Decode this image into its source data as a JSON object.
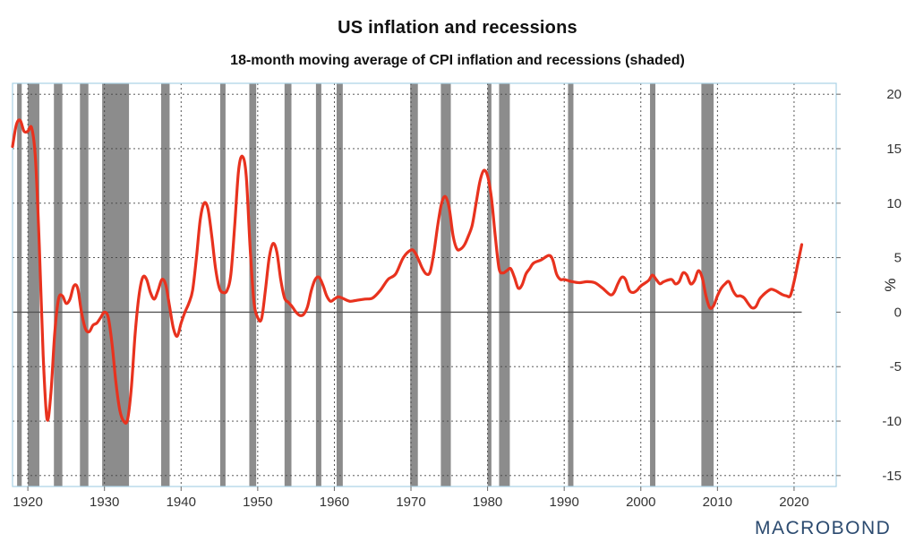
{
  "header": {
    "title": "US inflation and recessions",
    "subtitle": "18-month moving average of CPI inflation and recessions (shaded)"
  },
  "brand": {
    "logo_text": "MACROBOND"
  },
  "colors": {
    "line": "#e8321e",
    "recession": "#8c8c8c",
    "frame": "#a9d3e6",
    "grid": "#444444",
    "logo": "#2b4a6f"
  },
  "chart_data": {
    "type": "line",
    "title": "US inflation and recessions",
    "subtitle": "18-month moving average of CPI inflation and recessions (shaded)",
    "xlabel": "",
    "ylabel": "%",
    "xlim": [
      1918,
      2025.5
    ],
    "ylim": [
      -16,
      21
    ],
    "y_axis_side": "right",
    "grid": true,
    "x_ticks": [
      "1920",
      "1930",
      "1940",
      "1950",
      "1960",
      "1970",
      "1980",
      "1990",
      "2000",
      "2010",
      "2020"
    ],
    "y_ticks": [
      "20",
      "15",
      "10",
      "5",
      "0",
      "-5",
      "-10",
      "-15"
    ],
    "recessions": [
      [
        1918.6,
        1919.2
      ],
      [
        1920.0,
        1921.5
      ],
      [
        1923.4,
        1924.5
      ],
      [
        1926.8,
        1927.9
      ],
      [
        1929.7,
        1933.2
      ],
      [
        1937.4,
        1938.5
      ],
      [
        1945.1,
        1945.8
      ],
      [
        1948.9,
        1949.8
      ],
      [
        1953.5,
        1954.4
      ],
      [
        1957.6,
        1958.3
      ],
      [
        1960.3,
        1961.1
      ],
      [
        1969.9,
        1970.9
      ],
      [
        1973.9,
        1975.2
      ],
      [
        1980.0,
        1980.5
      ],
      [
        1981.5,
        1982.9
      ],
      [
        1990.5,
        1991.2
      ],
      [
        2001.2,
        2001.9
      ],
      [
        2007.9,
        2009.5
      ]
    ],
    "series": [
      {
        "values": [
          [
            1918.0,
            15.2
          ],
          [
            1918.5,
            17.2
          ],
          [
            1919.0,
            17.6
          ],
          [
            1919.5,
            16.6
          ],
          [
            1920.0,
            16.6
          ],
          [
            1920.5,
            16.9
          ],
          [
            1921.0,
            14.0
          ],
          [
            1921.5,
            6.0
          ],
          [
            1922.0,
            -4.0
          ],
          [
            1922.5,
            -9.8
          ],
          [
            1923.0,
            -7.5
          ],
          [
            1923.5,
            -2.0
          ],
          [
            1924.0,
            1.2
          ],
          [
            1924.5,
            1.5
          ],
          [
            1925.0,
            0.8
          ],
          [
            1925.5,
            1.2
          ],
          [
            1926.0,
            2.4
          ],
          [
            1926.5,
            2.2
          ],
          [
            1927.0,
            0.0
          ],
          [
            1927.5,
            -1.5
          ],
          [
            1928.0,
            -1.8
          ],
          [
            1928.5,
            -1.2
          ],
          [
            1929.0,
            -1.0
          ],
          [
            1929.5,
            -0.5
          ],
          [
            1930.0,
            0.0
          ],
          [
            1930.5,
            -0.5
          ],
          [
            1931.0,
            -3.0
          ],
          [
            1931.5,
            -6.5
          ],
          [
            1932.0,
            -9.0
          ],
          [
            1932.5,
            -10.0
          ],
          [
            1933.0,
            -9.9
          ],
          [
            1933.5,
            -7.0
          ],
          [
            1934.0,
            -2.0
          ],
          [
            1934.5,
            1.5
          ],
          [
            1935.0,
            3.2
          ],
          [
            1935.5,
            3.0
          ],
          [
            1936.0,
            1.8
          ],
          [
            1936.5,
            1.2
          ],
          [
            1937.0,
            2.0
          ],
          [
            1937.5,
            3.0
          ],
          [
            1938.0,
            2.5
          ],
          [
            1938.5,
            0.5
          ],
          [
            1939.0,
            -1.5
          ],
          [
            1939.5,
            -2.2
          ],
          [
            1940.0,
            -1.0
          ],
          [
            1940.5,
            0.0
          ],
          [
            1941.0,
            0.8
          ],
          [
            1941.5,
            2.0
          ],
          [
            1942.0,
            5.0
          ],
          [
            1942.5,
            8.5
          ],
          [
            1943.0,
            10.0
          ],
          [
            1943.5,
            9.5
          ],
          [
            1944.0,
            7.0
          ],
          [
            1944.5,
            4.0
          ],
          [
            1945.0,
            2.2
          ],
          [
            1945.5,
            1.8
          ],
          [
            1946.0,
            2.0
          ],
          [
            1946.5,
            3.5
          ],
          [
            1947.0,
            8.0
          ],
          [
            1947.5,
            13.0
          ],
          [
            1948.0,
            14.3
          ],
          [
            1948.5,
            12.5
          ],
          [
            1949.0,
            6.0
          ],
          [
            1949.5,
            1.0
          ],
          [
            1950.0,
            -0.5
          ],
          [
            1950.5,
            -0.6
          ],
          [
            1951.0,
            2.0
          ],
          [
            1951.5,
            5.0
          ],
          [
            1952.0,
            6.3
          ],
          [
            1952.5,
            5.5
          ],
          [
            1953.0,
            3.0
          ],
          [
            1953.5,
            1.3
          ],
          [
            1954.0,
            0.9
          ],
          [
            1954.5,
            0.5
          ],
          [
            1955.0,
            0.0
          ],
          [
            1955.5,
            -0.3
          ],
          [
            1956.0,
            -0.2
          ],
          [
            1956.5,
            0.5
          ],
          [
            1957.0,
            2.0
          ],
          [
            1957.5,
            3.0
          ],
          [
            1958.0,
            3.2
          ],
          [
            1958.5,
            2.5
          ],
          [
            1959.0,
            1.5
          ],
          [
            1959.5,
            1.0
          ],
          [
            1960.0,
            1.2
          ],
          [
            1960.5,
            1.4
          ],
          [
            1961.0,
            1.3
          ],
          [
            1962.0,
            1.0
          ],
          [
            1963.0,
            1.1
          ],
          [
            1964.0,
            1.2
          ],
          [
            1965.0,
            1.3
          ],
          [
            1966.0,
            2.0
          ],
          [
            1967.0,
            3.0
          ],
          [
            1968.0,
            3.5
          ],
          [
            1969.0,
            5.0
          ],
          [
            1970.0,
            5.7
          ],
          [
            1970.5,
            5.5
          ],
          [
            1971.0,
            4.8
          ],
          [
            1971.5,
            4.0
          ],
          [
            1972.0,
            3.5
          ],
          [
            1972.5,
            3.7
          ],
          [
            1973.0,
            5.5
          ],
          [
            1973.5,
            8.0
          ],
          [
            1974.0,
            10.0
          ],
          [
            1974.5,
            10.6
          ],
          [
            1975.0,
            9.5
          ],
          [
            1975.5,
            7.0
          ],
          [
            1976.0,
            5.8
          ],
          [
            1976.5,
            5.8
          ],
          [
            1977.0,
            6.2
          ],
          [
            1977.5,
            7.0
          ],
          [
            1978.0,
            8.0
          ],
          [
            1978.5,
            10.0
          ],
          [
            1979.0,
            12.0
          ],
          [
            1979.5,
            13.0
          ],
          [
            1980.0,
            12.5
          ],
          [
            1980.5,
            10.5
          ],
          [
            1981.0,
            7.0
          ],
          [
            1981.5,
            4.0
          ],
          [
            1982.0,
            3.6
          ],
          [
            1982.5,
            3.8
          ],
          [
            1983.0,
            4.0
          ],
          [
            1983.5,
            3.2
          ],
          [
            1984.0,
            2.2
          ],
          [
            1984.5,
            2.5
          ],
          [
            1985.0,
            3.5
          ],
          [
            1985.5,
            4.0
          ],
          [
            1986.0,
            4.5
          ],
          [
            1987.0,
            4.8
          ],
          [
            1988.0,
            5.2
          ],
          [
            1988.5,
            4.8
          ],
          [
            1989.0,
            3.5
          ],
          [
            1989.5,
            3.0
          ],
          [
            1990.0,
            3.0
          ],
          [
            1991.0,
            2.8
          ],
          [
            1992.0,
            2.7
          ],
          [
            1993.0,
            2.8
          ],
          [
            1994.0,
            2.7
          ],
          [
            1995.0,
            2.2
          ],
          [
            1996.0,
            1.6
          ],
          [
            1996.5,
            1.8
          ],
          [
            1997.0,
            2.6
          ],
          [
            1997.5,
            3.2
          ],
          [
            1998.0,
            3.0
          ],
          [
            1998.5,
            2.0
          ],
          [
            1999.0,
            1.8
          ],
          [
            1999.5,
            2.0
          ],
          [
            2000.0,
            2.4
          ],
          [
            2001.0,
            2.9
          ],
          [
            2001.5,
            3.4
          ],
          [
            2002.0,
            3.0
          ],
          [
            2002.5,
            2.6
          ],
          [
            2003.0,
            2.8
          ],
          [
            2004.0,
            3.0
          ],
          [
            2004.5,
            2.6
          ],
          [
            2005.0,
            2.8
          ],
          [
            2005.5,
            3.6
          ],
          [
            2006.0,
            3.4
          ],
          [
            2006.5,
            2.6
          ],
          [
            2007.0,
            2.9
          ],
          [
            2007.5,
            3.8
          ],
          [
            2008.0,
            3.2
          ],
          [
            2008.5,
            1.5
          ],
          [
            2009.0,
            0.4
          ],
          [
            2009.5,
            0.6
          ],
          [
            2010.0,
            1.5
          ],
          [
            2010.5,
            2.2
          ],
          [
            2011.0,
            2.6
          ],
          [
            2011.5,
            2.8
          ],
          [
            2012.0,
            2.0
          ],
          [
            2012.5,
            1.5
          ],
          [
            2013.0,
            1.5
          ],
          [
            2013.5,
            1.3
          ],
          [
            2014.0,
            0.8
          ],
          [
            2014.5,
            0.4
          ],
          [
            2015.0,
            0.5
          ],
          [
            2015.5,
            1.2
          ],
          [
            2016.0,
            1.6
          ],
          [
            2016.5,
            1.9
          ],
          [
            2017.0,
            2.1
          ],
          [
            2017.5,
            2.0
          ],
          [
            2018.0,
            1.8
          ],
          [
            2018.5,
            1.6
          ],
          [
            2019.0,
            1.5
          ],
          [
            2019.5,
            1.5
          ],
          [
            2020.0,
            2.8
          ],
          [
            2020.5,
            4.5
          ],
          [
            2021.0,
            6.2
          ]
        ]
      }
    ]
  }
}
